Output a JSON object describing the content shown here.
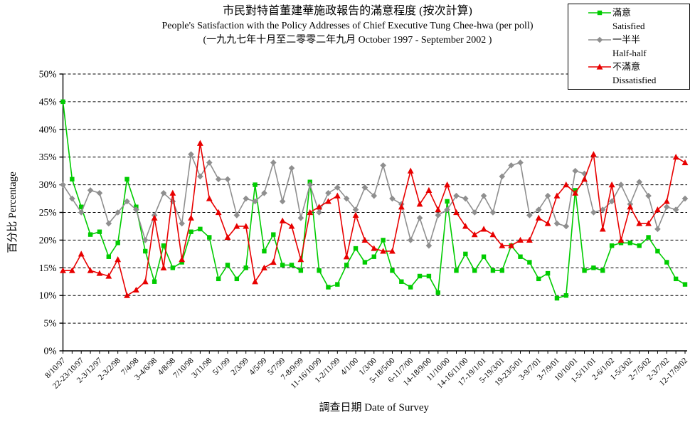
{
  "title": {
    "zh": "市民對特首董建華施政報告的滿意程度 (按次計算)",
    "en": "People's Satisfaction with the Policy Addresses of Chief Executive Tung Chee-hwa (per poll)",
    "period": "(一九九七年十月至二零零二年九月 October 1997 - September 2002 )"
  },
  "legend": [
    {
      "label_zh": "滿意",
      "label_en": "Satisfied",
      "color": "#00cc00",
      "marker": "square"
    },
    {
      "label_zh": "一半半",
      "label_en": "Half-half",
      "color": "#8f8f8f",
      "marker": "diamond"
    },
    {
      "label_zh": "不滿意",
      "label_en": "Dissatisfied",
      "color": "#e80000",
      "marker": "triangle"
    }
  ],
  "axes": {
    "y_ticks": [
      "0%",
      "5%",
      "10%",
      "15%",
      "20%",
      "25%",
      "30%",
      "35%",
      "40%",
      "45%",
      "50%"
    ],
    "grid_color": "#000000",
    "axis_color": "#000000"
  },
  "chart_data": {
    "type": "line",
    "title": "市民對特首董建華施政報告的滿意程度 (按次計算) / People's Satisfaction with the Policy Addresses of Chief Executive Tung Chee-hwa (per poll), October 1997 - September 2002",
    "xlabel": "調查日期 Date of Survey",
    "ylabel": "百分比 Percentage",
    "ylim": [
      0,
      50
    ],
    "grid": true,
    "legend_position": "top-right",
    "n_points": 69,
    "label_every": 2,
    "x_labels": [
      "8/10/97",
      "22-23/10/97",
      "2-3/12/97",
      "2-3/2/98",
      "7/4/98",
      "3-4/6/98",
      "4/8/98",
      "7/10/98",
      "3/11/98",
      "5/1/99",
      "2/3/99",
      "4/5/99",
      "5/7/99",
      "7-8/9/99",
      "11-16/10/99",
      "1-2/11/99",
      "4/1/00",
      "1/3/00",
      "5-18/5/00",
      "6-11/7/00",
      "14-18/9/00",
      "11/10/00",
      "14-16/11/00",
      "17-19/1/01",
      "5-19/3/01",
      "19-23/5/01",
      "3-9/7/01",
      "3-7/9/01",
      "10/10/01",
      "1-5/11/01",
      "2-6/1/02",
      "1-5/3/02",
      "2-7/5/02",
      "2-3/7/02",
      "12-17/9/02"
    ],
    "series": [
      {
        "name_zh": "滿意",
        "name_en": "Satisfied",
        "color": "#00cc00",
        "marker": "square",
        "values": [
          45,
          31,
          26,
          21,
          21.5,
          17,
          19.5,
          31,
          26,
          18,
          12.5,
          19,
          15,
          16,
          21.5,
          22,
          20.5,
          13,
          15.5,
          13,
          15,
          30,
          18,
          21,
          15.5,
          15.5,
          14.5,
          30.5,
          14.5,
          11.5,
          12,
          15.5,
          18.5,
          16,
          17,
          20,
          14.5,
          12.5,
          11.5,
          13.5,
          13.5,
          10.5,
          27,
          14.5,
          17.5,
          14.5,
          17,
          14.5,
          14.5,
          19,
          17,
          16,
          13,
          14,
          9.5,
          10,
          29,
          14.5,
          15,
          14.5,
          19,
          19.5,
          19.5,
          19,
          20.5,
          18,
          16,
          13,
          12
        ]
      },
      {
        "name_zh": "一半半",
        "name_en": "Half-half",
        "color": "#8f8f8f",
        "marker": "diamond",
        "values": [
          30,
          27.5,
          25,
          29,
          28.5,
          23,
          25,
          27,
          25.5,
          20,
          24.5,
          28.5,
          27,
          23,
          35.5,
          31.5,
          34,
          31,
          31,
          24.5,
          27.5,
          27,
          28.5,
          34,
          27,
          33,
          24,
          30,
          25,
          28.5,
          29.5,
          27.5,
          25.5,
          29.5,
          28,
          33.5,
          27.5,
          26.5,
          20,
          24,
          19,
          24.5,
          25.5,
          28,
          27.5,
          25,
          28,
          25,
          31.5,
          33.5,
          34,
          24.5,
          25.5,
          28,
          23,
          22.5,
          32.5,
          32,
          25,
          25.5,
          27,
          30,
          26.5,
          30.5,
          28,
          22,
          26,
          25.5,
          27.5
        ]
      },
      {
        "name_zh": "不滿意",
        "name_en": "Dissatisfied",
        "color": "#e80000",
        "marker": "triangle",
        "values": [
          14.5,
          14.5,
          17.5,
          14.5,
          14,
          13.5,
          16.5,
          10,
          11,
          12.5,
          24,
          15,
          28.5,
          16.5,
          24,
          37.5,
          27.5,
          25,
          20.5,
          22.5,
          22.5,
          12.5,
          15,
          16,
          23.5,
          22.5,
          16.5,
          25,
          26,
          27,
          28,
          17,
          24.5,
          20,
          18.5,
          18,
          18,
          26,
          32.5,
          26.5,
          29,
          25.5,
          30,
          25,
          22.5,
          21,
          22,
          21,
          19,
          19,
          20,
          20,
          24,
          23,
          28,
          30,
          28.5,
          31,
          35.5,
          22,
          30,
          20,
          26,
          23,
          23,
          25.5,
          27,
          35,
          34
        ]
      }
    ]
  }
}
